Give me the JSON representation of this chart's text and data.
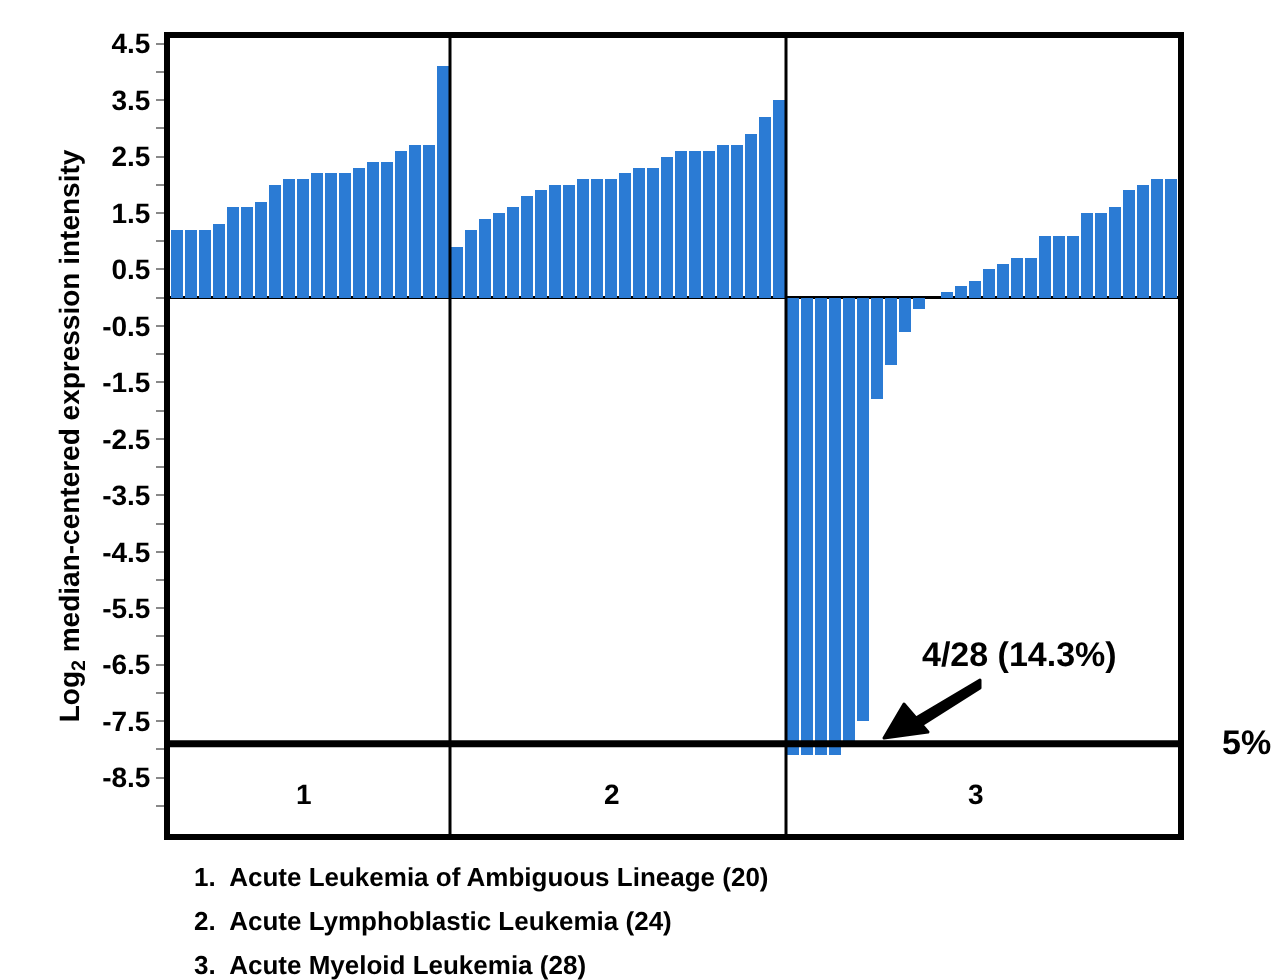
{
  "chart_data": {
    "type": "bar",
    "ylabel": "Log$_{2}$ median-centered expression intensity",
    "categories": [
      null,
      null,
      null,
      null,
      null,
      null,
      null,
      null,
      null,
      "1",
      null,
      null,
      null,
      null,
      null,
      null,
      null,
      null,
      null,
      null,
      null,
      null,
      null,
      null,
      null,
      null,
      null,
      null,
      null,
      null,
      null,
      "2",
      null,
      null,
      null,
      null,
      null,
      null,
      null,
      null,
      null,
      null,
      null,
      null,
      null,
      null,
      null,
      null,
      null,
      null,
      null,
      null,
      null,
      null,
      null,
      null,
      null,
      "3",
      null,
      null,
      null,
      null,
      null,
      null,
      null,
      null,
      null,
      null,
      null,
      null,
      null,
      null
    ],
    "values": [
      1.2,
      1.2,
      1.2,
      1.3,
      1.6,
      1.6,
      1.7,
      2.0,
      2.1,
      2.1,
      2.2,
      2.2,
      2.2,
      2.3,
      2.4,
      2.4,
      2.6,
      2.7,
      2.7,
      4.1,
      0.9,
      1.2,
      1.4,
      1.5,
      1.6,
      1.8,
      1.9,
      2.0,
      2.0,
      2.1,
      2.1,
      2.1,
      2.2,
      2.3,
      2.3,
      2.5,
      2.6,
      2.6,
      2.6,
      2.7,
      2.7,
      2.9,
      3.2,
      3.5,
      -8.1,
      -8.1,
      -8.1,
      -8.1,
      -7.9,
      -7.5,
      -1.8,
      -1.2,
      -0.6,
      -0.2,
      0,
      0.1,
      0.2,
      0.3,
      0.5,
      0.6,
      0.7,
      0.7,
      1.1,
      1.1,
      1.1,
      1.5,
      1.5,
      1.6,
      1.9,
      2.0,
      2.1,
      2.1
    ],
    "color": "#2b7bd4",
    "ylim": [
      -9.5,
      4.6
    ],
    "yticks": [
      4.5,
      {
        "value": 4,
        "label": null
      },
      3.5,
      {
        "value": 3,
        "label": null
      },
      2.5,
      {
        "value": 2,
        "label": null
      },
      1.5,
      {
        "value": 1,
        "label": null
      },
      0.5,
      {
        "value": 0,
        "label": null
      },
      -0.5,
      {
        "value": -1,
        "label": null
      },
      -1.5,
      {
        "value": -2,
        "label": null
      },
      -2.5,
      {
        "value": -3,
        "label": null
      },
      -3.5,
      {
        "value": -4,
        "label": null
      },
      -4.5,
      {
        "value": -5,
        "label": null
      },
      -5.5,
      {
        "value": -6,
        "label": null
      },
      -6.5,
      {
        "value": -7,
        "label": null
      },
      -7.5,
      {
        "value": -8,
        "label": null
      },
      -8.5,
      {
        "value": -9,
        "label": null
      }
    ],
    "ref_lines": [
      {
        "axis": "y",
        "value": -7.9,
        "color": "#000000"
      }
    ],
    "annotations": [
      "4/28 (14.3%)",
      "5%",
      "1.  Acute Leukemia of Ambiguous Lineage (20)",
      "2.  Acute Lymphoblastic Leukemia (24)",
      "3.  Acute Myeloid Leukemia (28)"
    ]
  }
}
